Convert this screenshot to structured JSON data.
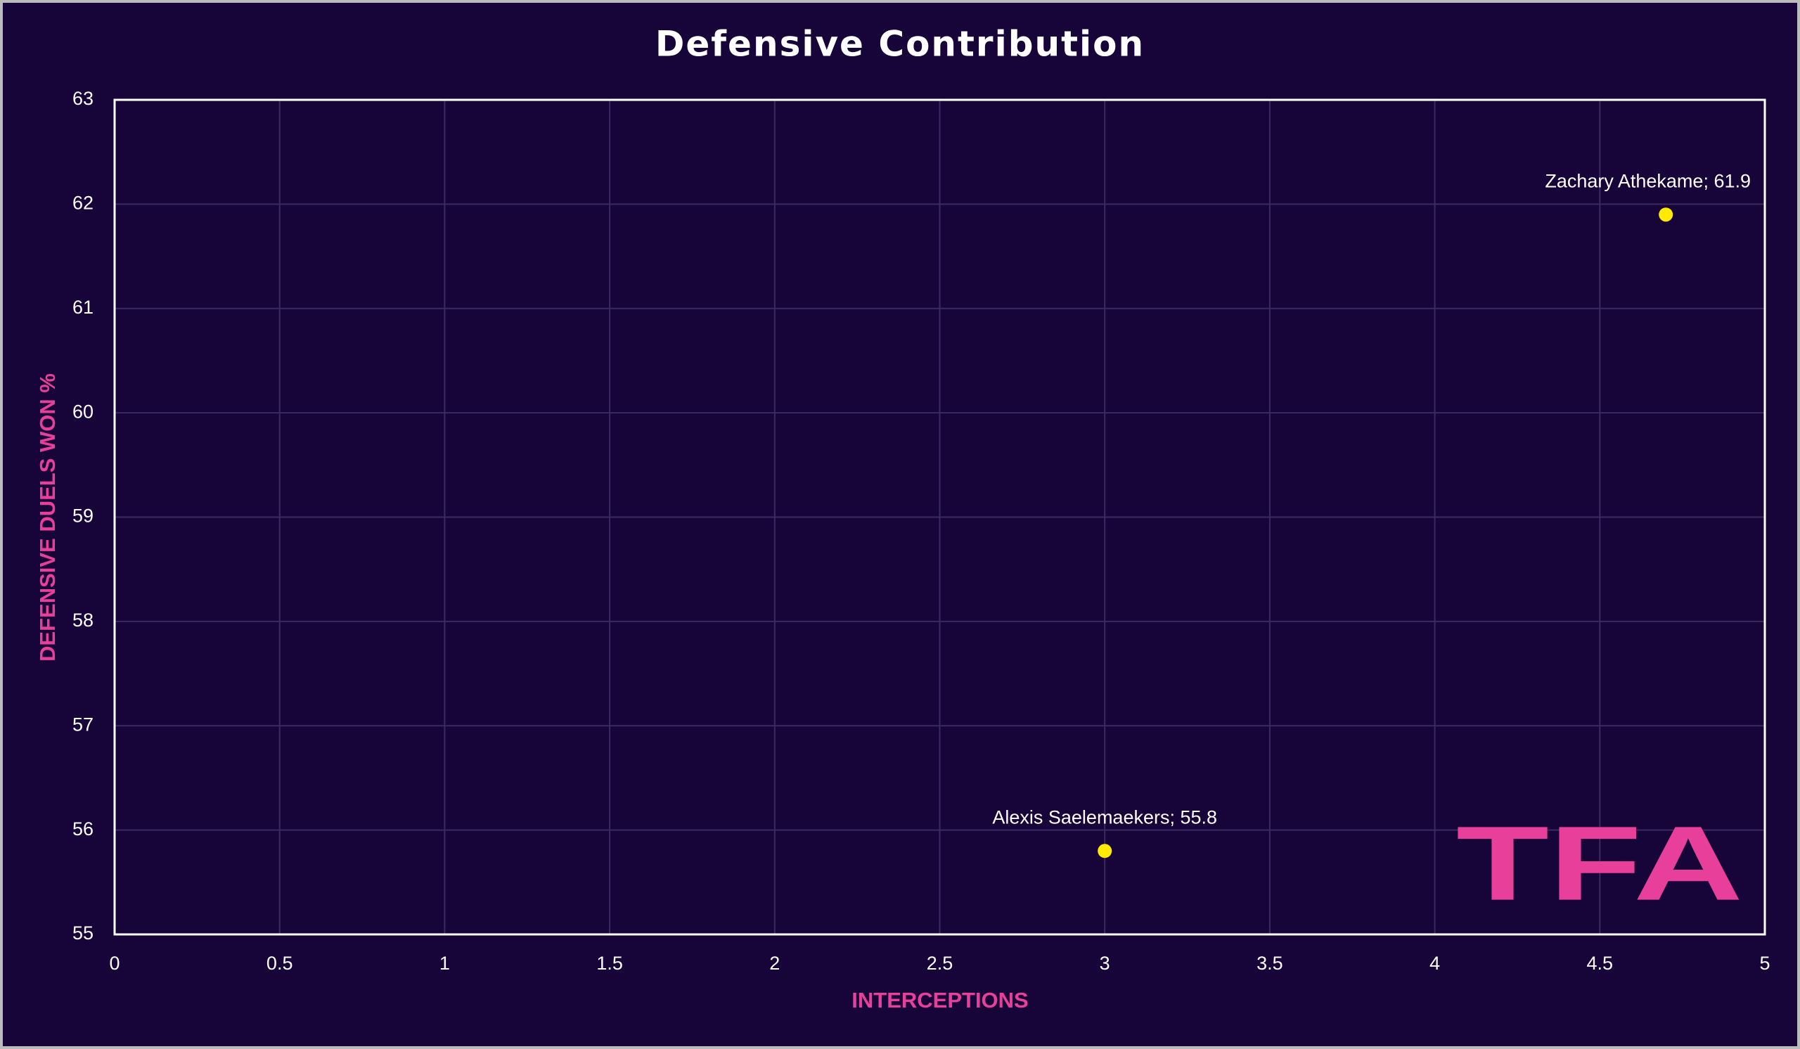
{
  "chart_data": {
    "type": "scatter",
    "title": "Defensive Contribution",
    "x_label": "INTERCEPTIONS",
    "y_label": "DEFENSIVE DUELS WON %",
    "x": [
      3,
      4.7
    ],
    "values": [
      55.8,
      61.9
    ],
    "value_labels": [
      "Alexis Saelemaekers; 55.8",
      "Zachary Athekame; 61.9"
    ],
    "color": "#ffea00",
    "xlim": [
      0,
      5
    ],
    "xticks": [
      0,
      0.5,
      1,
      1.5,
      2,
      2.5,
      3,
      3.5,
      4,
      4.5,
      5
    ],
    "ylim": [
      55,
      63
    ],
    "yticks": [
      55,
      56,
      57,
      58,
      59,
      60,
      61,
      62,
      63
    ],
    "grid": true,
    "watermark": "TFA"
  }
}
